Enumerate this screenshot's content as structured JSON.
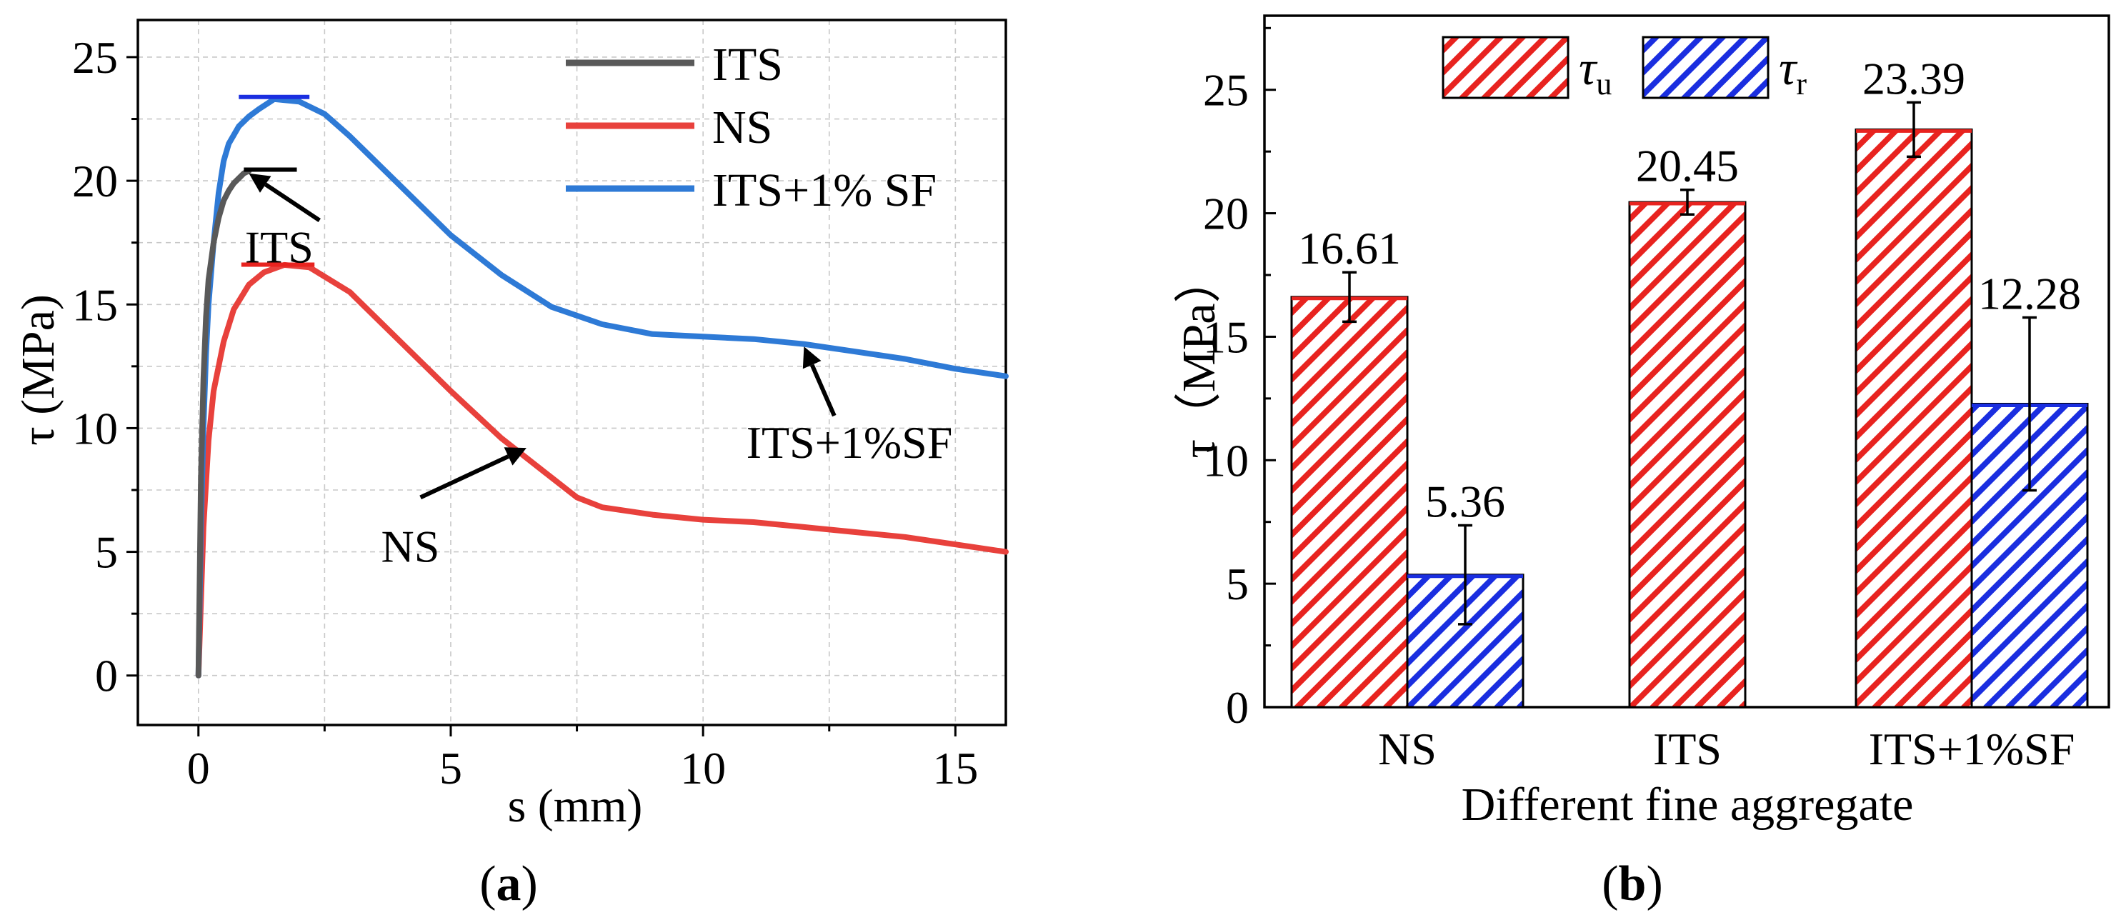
{
  "chart_data": [
    {
      "type": "line",
      "panel_label": "a",
      "xlabel": "s (mm)",
      "ylabel": "τ (MPa)",
      "xlim": [
        -1.2,
        16
      ],
      "ylim": [
        -2,
        26.5
      ],
      "xticks": [
        0,
        5,
        10,
        15
      ],
      "yticks": [
        0,
        5,
        10,
        15,
        20,
        25
      ],
      "grid": true,
      "legend_position": "top-right",
      "series": [
        {
          "name": "ITS",
          "color": "#595959",
          "points": [
            [
              0,
              0
            ],
            [
              0.05,
              8
            ],
            [
              0.1,
              12
            ],
            [
              0.15,
              14.5
            ],
            [
              0.2,
              16
            ],
            [
              0.3,
              17.5
            ],
            [
              0.4,
              18.5
            ],
            [
              0.5,
              19.2
            ],
            [
              0.6,
              19.6
            ],
            [
              0.7,
              19.9
            ],
            [
              0.8,
              20.1
            ],
            [
              0.9,
              20.3
            ],
            [
              1.0,
              20.4
            ]
          ],
          "peak": 20.45
        },
        {
          "name": "NS",
          "color": "#e8413c",
          "points": [
            [
              0,
              0
            ],
            [
              0.1,
              6
            ],
            [
              0.2,
              9.5
            ],
            [
              0.3,
              11.5
            ],
            [
              0.5,
              13.5
            ],
            [
              0.7,
              14.8
            ],
            [
              1.0,
              15.8
            ],
            [
              1.3,
              16.3
            ],
            [
              1.7,
              16.6
            ],
            [
              2.2,
              16.5
            ],
            [
              3,
              15.5
            ],
            [
              4,
              13.5
            ],
            [
              5,
              11.5
            ],
            [
              6,
              9.6
            ],
            [
              7,
              8
            ],
            [
              7.5,
              7.2
            ],
            [
              8,
              6.8
            ],
            [
              9,
              6.5
            ],
            [
              10,
              6.3
            ],
            [
              11,
              6.2
            ],
            [
              12,
              6
            ],
            [
              13,
              5.8
            ],
            [
              14,
              5.6
            ],
            [
              15,
              5.3
            ],
            [
              16,
              5.0
            ]
          ],
          "peak": 16.61
        },
        {
          "name": "ITS+1% SF",
          "color": "#2e7ad6",
          "points": [
            [
              0,
              0
            ],
            [
              0.05,
              6
            ],
            [
              0.1,
              10
            ],
            [
              0.15,
              13
            ],
            [
              0.2,
              15
            ],
            [
              0.3,
              17.5
            ],
            [
              0.4,
              19.5
            ],
            [
              0.5,
              20.8
            ],
            [
              0.6,
              21.5
            ],
            [
              0.8,
              22.2
            ],
            [
              1.0,
              22.6
            ],
            [
              1.2,
              22.9
            ],
            [
              1.5,
              23.3
            ],
            [
              2,
              23.2
            ],
            [
              2.5,
              22.7
            ],
            [
              3,
              21.8
            ],
            [
              4,
              19.8
            ],
            [
              5,
              17.8
            ],
            [
              6,
              16.2
            ],
            [
              7,
              14.9
            ],
            [
              8,
              14.2
            ],
            [
              9,
              13.8
            ],
            [
              10,
              13.7
            ],
            [
              11,
              13.6
            ],
            [
              12,
              13.4
            ],
            [
              13,
              13.1
            ],
            [
              14,
              12.8
            ],
            [
              15,
              12.4
            ],
            [
              16,
              12.1
            ]
          ],
          "peak": 23.39
        }
      ],
      "annotations": [
        "ITS",
        "NS",
        "ITS+1%SF"
      ]
    },
    {
      "type": "bar",
      "panel_label": "b",
      "xlabel": "Different fine aggregate",
      "ylabel": "τ（MPa）",
      "ylim": [
        0,
        28
      ],
      "yticks": [
        0,
        5,
        10,
        15,
        20,
        25
      ],
      "categories": [
        "NS",
        "ITS",
        "ITS+1%SF"
      ],
      "legend_position": "top",
      "series": [
        {
          "name": "τu",
          "color": "#e8231f",
          "values": [
            16.61,
            20.45,
            23.39
          ],
          "errors": [
            1.0,
            0.5,
            1.1
          ],
          "labels": [
            "16.61",
            "20.45",
            "23.39"
          ]
        },
        {
          "name": "τr",
          "color": "#1a2ee0",
          "values": [
            5.36,
            null,
            12.28
          ],
          "errors": [
            2.0,
            null,
            3.5
          ],
          "labels": [
            "5.36",
            "",
            "12.28"
          ]
        }
      ]
    }
  ]
}
